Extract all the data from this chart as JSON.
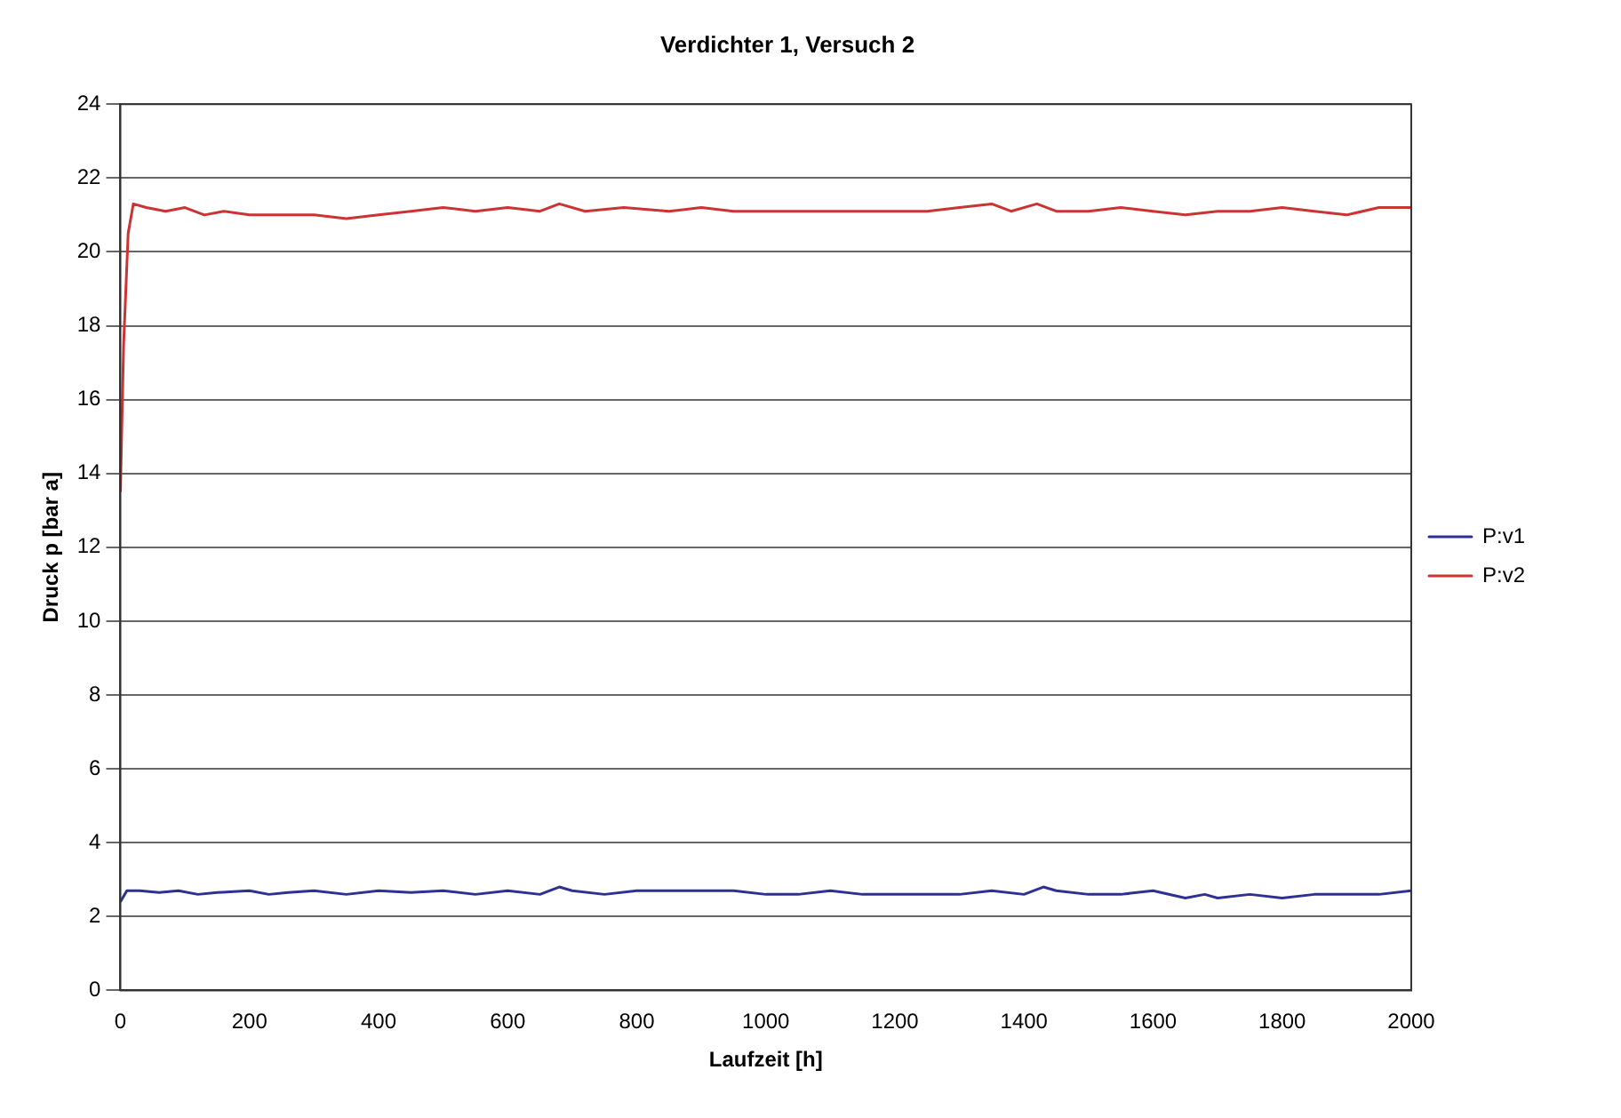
{
  "chart_data": {
    "type": "line",
    "title": "Verdichter 1, Versuch 2",
    "xlabel": "Laufzeit [h]",
    "ylabel": "Druck p [bar a]",
    "xlim": [
      0,
      2000
    ],
    "xticks": [
      0,
      200,
      400,
      600,
      800,
      1000,
      1200,
      1400,
      1600,
      1800,
      2000
    ],
    "ylim": [
      0,
      24
    ],
    "yticks": [
      0,
      2,
      4,
      6,
      8,
      10,
      12,
      14,
      16,
      18,
      20,
      22,
      24
    ],
    "grid": "y",
    "legend": "right",
    "marker": "none",
    "line_style": "solid",
    "series": [
      {
        "name": "P:v1",
        "color": "#2e3192",
        "x": [
          0,
          10,
          30,
          60,
          90,
          120,
          150,
          200,
          230,
          260,
          300,
          350,
          400,
          450,
          500,
          550,
          600,
          650,
          680,
          700,
          750,
          800,
          850,
          900,
          950,
          1000,
          1050,
          1100,
          1150,
          1200,
          1250,
          1300,
          1350,
          1400,
          1430,
          1450,
          1500,
          1550,
          1600,
          1650,
          1680,
          1700,
          1750,
          1800,
          1850,
          1900,
          1950,
          2000
        ],
        "values": [
          2.4,
          2.7,
          2.7,
          2.65,
          2.7,
          2.6,
          2.65,
          2.7,
          2.6,
          2.65,
          2.7,
          2.6,
          2.7,
          2.65,
          2.7,
          2.6,
          2.7,
          2.6,
          2.8,
          2.7,
          2.6,
          2.7,
          2.7,
          2.7,
          2.7,
          2.6,
          2.6,
          2.7,
          2.6,
          2.6,
          2.6,
          2.6,
          2.7,
          2.6,
          2.8,
          2.7,
          2.6,
          2.6,
          2.7,
          2.5,
          2.6,
          2.5,
          2.6,
          2.5,
          2.6,
          2.6,
          2.6,
          2.7
        ]
      },
      {
        "name": "P:v2",
        "color": "#cc3333",
        "x": [
          0,
          5,
          12,
          20,
          40,
          70,
          100,
          130,
          160,
          200,
          250,
          300,
          350,
          400,
          450,
          500,
          550,
          600,
          650,
          680,
          720,
          780,
          850,
          900,
          950,
          1000,
          1050,
          1100,
          1150,
          1200,
          1250,
          1300,
          1350,
          1380,
          1420,
          1450,
          1500,
          1550,
          1600,
          1650,
          1700,
          1750,
          1800,
          1850,
          1900,
          1950,
          2000
        ],
        "values": [
          13.5,
          17.5,
          20.5,
          21.3,
          21.2,
          21.1,
          21.2,
          21.0,
          21.1,
          21.0,
          21.0,
          21.0,
          20.9,
          21.0,
          21.1,
          21.2,
          21.1,
          21.2,
          21.1,
          21.3,
          21.1,
          21.2,
          21.1,
          21.2,
          21.1,
          21.1,
          21.1,
          21.1,
          21.1,
          21.1,
          21.1,
          21.2,
          21.3,
          21.1,
          21.3,
          21.1,
          21.1,
          21.2,
          21.1,
          21.0,
          21.1,
          21.1,
          21.2,
          21.1,
          21.0,
          21.2,
          21.2
        ]
      }
    ]
  }
}
